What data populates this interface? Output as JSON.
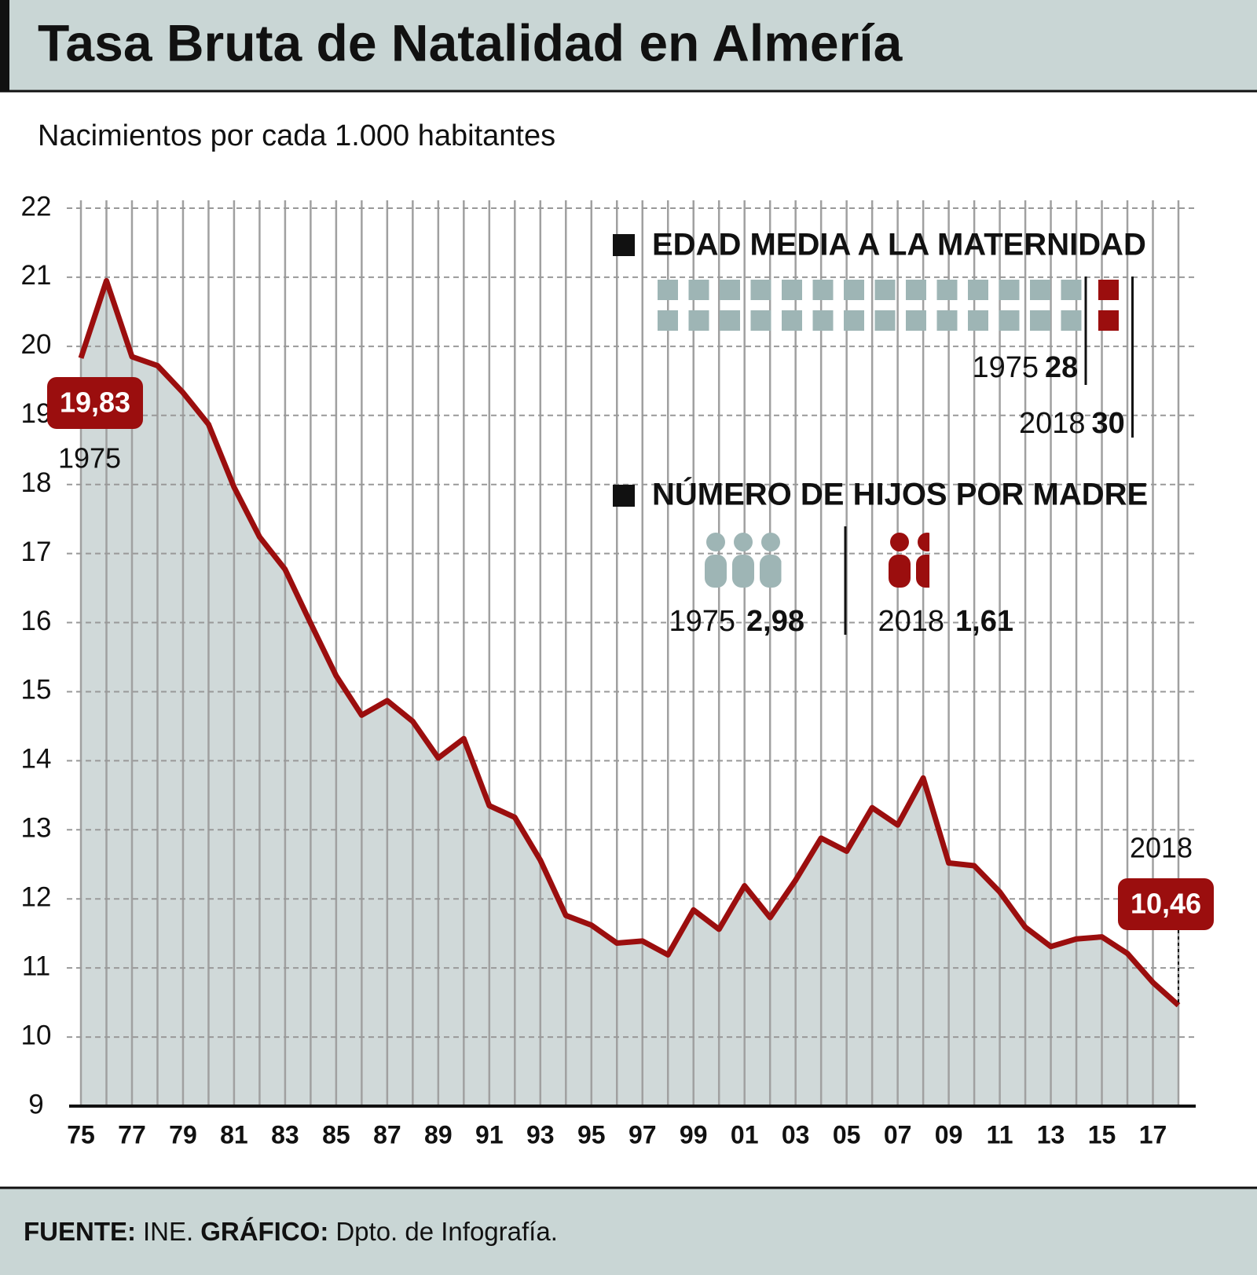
{
  "chart_data": {
    "type": "line",
    "title": "Tasa Bruta de Natalidad en Almería",
    "subtitle": "Nacimientos por cada 1.000 habitantes",
    "categories": [
      "75",
      null,
      "77",
      null,
      "79",
      null,
      "81",
      null,
      "83",
      null,
      "85",
      null,
      "87",
      null,
      "89",
      null,
      "91",
      null,
      "93",
      null,
      "95",
      null,
      "97",
      null,
      "99",
      null,
      "01",
      null,
      "03",
      null,
      "05",
      null,
      "07",
      null,
      "09",
      null,
      "11",
      null,
      "13",
      null,
      "15",
      null,
      "17",
      null
    ],
    "values": [
      19.83,
      20.95,
      19.85,
      19.72,
      19.33,
      18.87,
      17.96,
      17.24,
      16.77,
      15.99,
      15.23,
      14.66,
      14.87,
      14.57,
      14.04,
      14.32,
      13.35,
      13.18,
      12.56,
      11.76,
      11.62,
      11.36,
      11.39,
      11.19,
      11.84,
      11.56,
      12.19,
      11.73,
      12.27,
      12.88,
      12.69,
      13.32,
      13.07,
      13.75,
      12.52,
      12.48,
      12.1,
      11.59,
      11.31,
      11.42,
      11.45,
      11.21,
      10.79,
      10.46
    ],
    "value_labels": [
      "19,83",
      null,
      null,
      null,
      null,
      null,
      null,
      null,
      null,
      null,
      null,
      null,
      null,
      null,
      null,
      null,
      null,
      null,
      null,
      null,
      null,
      null,
      null,
      null,
      null,
      null,
      null,
      null,
      null,
      null,
      null,
      null,
      null,
      null,
      null,
      null,
      null,
      null,
      null,
      null,
      null,
      null,
      null,
      "10,46"
    ],
    "point_labels": [
      "1975",
      null,
      null,
      null,
      null,
      null,
      null,
      null,
      null,
      null,
      null,
      null,
      null,
      null,
      null,
      null,
      null,
      null,
      null,
      null,
      null,
      null,
      null,
      null,
      null,
      null,
      null,
      null,
      null,
      null,
      null,
      null,
      null,
      null,
      null,
      null,
      null,
      null,
      null,
      null,
      null,
      null,
      null,
      "2018"
    ],
    "color": "#9b0e0e",
    "fill_color": "#d0d9d9",
    "ylim": [
      9,
      22
    ],
    "yticks": [
      9,
      10,
      11,
      12,
      13,
      14,
      15,
      16,
      17,
      18,
      19,
      20,
      21,
      22
    ],
    "grid": true
  },
  "insets": {
    "maternal_age": {
      "title": "EDAD MEDIA A LA MATERNIDAD",
      "items": [
        {
          "year": "1975",
          "value": 28,
          "color": "#9eb5b5"
        },
        {
          "year": "2018",
          "value": 30,
          "color": "#9b0e0e"
        }
      ]
    },
    "children": {
      "title": "NÚMERO DE HIJOS POR MADRE",
      "items": [
        {
          "year": "1975",
          "value": 2.98,
          "value_label": "2,98",
          "color": "#9eb5b5"
        },
        {
          "year": "2018",
          "value": 1.61,
          "value_label": "1,61",
          "color": "#9b0e0e"
        }
      ]
    }
  },
  "footer": {
    "segments": [
      {
        "text": "FUENTE:",
        "bold": true
      },
      {
        "text": "INE.",
        "bold": false
      },
      {
        "text": "GRÁFICO:",
        "bold": true
      },
      {
        "text": "Dpto. de Infografía.",
        "bold": false
      }
    ]
  }
}
